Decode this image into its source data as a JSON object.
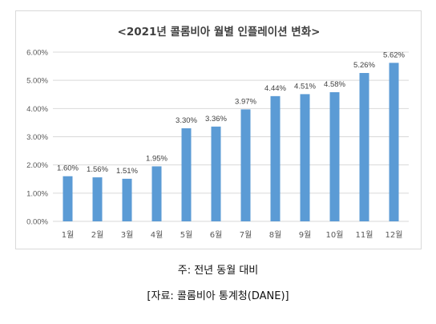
{
  "chart_data": {
    "type": "bar",
    "title": "<2021년 콜롬비아 월별 인플레이션 변화>",
    "categories": [
      "1월",
      "2월",
      "3월",
      "4월",
      "5월",
      "6월",
      "7월",
      "8월",
      "9월",
      "10월",
      "11월",
      "12월"
    ],
    "values": [
      1.6,
      1.56,
      1.51,
      1.95,
      3.3,
      3.36,
      3.97,
      4.44,
      4.51,
      4.58,
      5.26,
      5.62
    ],
    "data_labels": [
      "1.60%",
      "1.56%",
      "1.51%",
      "1.95%",
      "3.30%",
      "3.36%",
      "3.97%",
      "4.44%",
      "4.51%",
      "4.58%",
      "5.26%",
      "5.62%"
    ],
    "y_ticks": [
      0,
      1,
      2,
      3,
      4,
      5,
      6
    ],
    "y_tick_labels": [
      "0.00%",
      "1.00%",
      "2.00%",
      "3.00%",
      "4.00%",
      "5.00%",
      "6.00%"
    ],
    "ylim": [
      0,
      6
    ],
    "xlabel": "",
    "ylabel": "",
    "grid": true,
    "legend": "none",
    "bar_color": "#5b9bd5",
    "grid_color": "#d9d9d9"
  },
  "captions": {
    "note": "주: 전년 동월 대비",
    "source": "[자료: 콜롬비아 통계청(DANE)]"
  }
}
